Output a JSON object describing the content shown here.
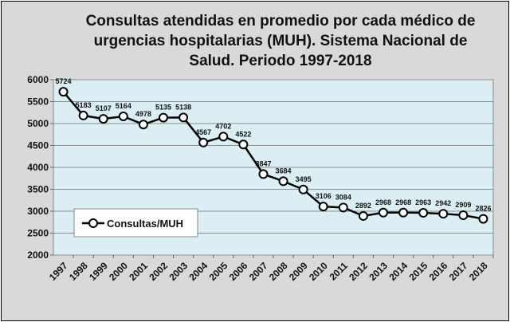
{
  "chart_data": {
    "type": "line",
    "title": "Consultas atendidas en promedio por cada médico de urgencias hospitalarias (MUH). Sistema Nacional de Salud. Periodo 1997-2018",
    "title_lines": [
      "Consultas atendidas en promedio por cada médico de",
      "urgencias hospitalarias (MUH). Sistema Nacional de",
      "Salud. Periodo 1997-2018"
    ],
    "categories": [
      "1997",
      "1998",
      "1999",
      "2000",
      "2001",
      "2002",
      "2003",
      "2004",
      "2005",
      "2006",
      "2007",
      "2008",
      "2009",
      "2010",
      "2011",
      "2012",
      "2013",
      "2014",
      "2015",
      "2016",
      "2017",
      "2018"
    ],
    "series": [
      {
        "name": "Consultas/MUH",
        "values": [
          5724,
          5183,
          5107,
          5164,
          4978,
          5135,
          5138,
          4567,
          4702,
          4522,
          3847,
          3684,
          3495,
          3106,
          3084,
          2892,
          2968,
          2968,
          2963,
          2942,
          2909,
          2826
        ]
      }
    ],
    "ylim": [
      2000,
      6000
    ],
    "yticks": [
      2000,
      2500,
      3000,
      3500,
      4000,
      4500,
      5000,
      5500,
      6000
    ],
    "grid": true,
    "legend_placement": "bottom-left",
    "data_labels": true,
    "colors": {
      "line": "#000000",
      "marker_fill": "#ffffff",
      "plot_bg": "#dbeef4",
      "chart_bg": "#d9d9d9",
      "grid": "#8c8c8c"
    }
  }
}
